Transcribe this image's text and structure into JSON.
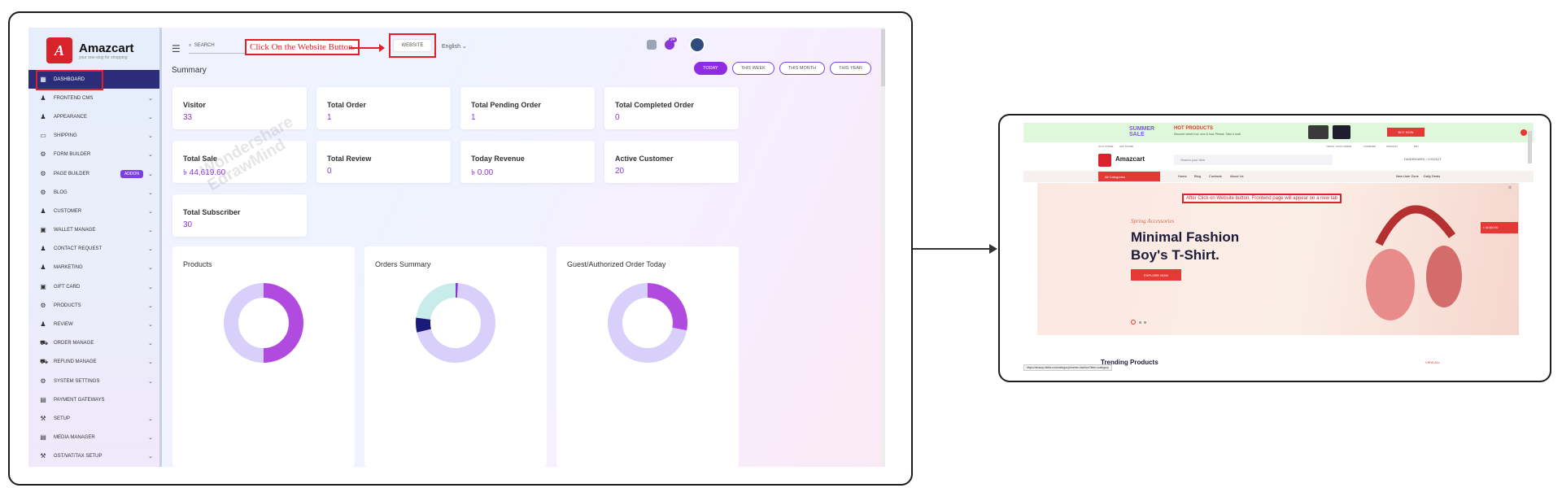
{
  "dashboard": {
    "brand": {
      "name": "Amazcart",
      "tagline": "your one-stop for shopping",
      "mark": "A"
    },
    "sidebar": [
      {
        "label": "Dashboard",
        "icon": "grid-icon",
        "active": true,
        "chevron": false
      },
      {
        "label": "Frontend CMS",
        "icon": "user-icon",
        "chevron": true
      },
      {
        "label": "Appearance",
        "icon": "user-icon",
        "chevron": true
      },
      {
        "label": "Shipping",
        "icon": "card-icon",
        "chevron": true
      },
      {
        "label": "Form Builder",
        "icon": "gears-icon",
        "chevron": true
      },
      {
        "label": "Page Builder",
        "icon": "gears-icon",
        "chevron": true,
        "badge": "ADDON"
      },
      {
        "label": "Blog",
        "icon": "gear-icon",
        "chevron": true
      },
      {
        "label": "Customer",
        "icon": "users-icon",
        "chevron": true
      },
      {
        "label": "Wallet Manage",
        "icon": "wallet-icon",
        "chevron": true
      },
      {
        "label": "Contact Request",
        "icon": "user-icon",
        "chevron": true
      },
      {
        "label": "Marketing",
        "icon": "user-icon",
        "chevron": true
      },
      {
        "label": "Gift Card",
        "icon": "gift-icon",
        "chevron": true
      },
      {
        "label": "Products",
        "icon": "gear-icon",
        "chevron": true
      },
      {
        "label": "Review",
        "icon": "user-icon",
        "chevron": true
      },
      {
        "label": "Order Manage",
        "icon": "cart-icon",
        "chevron": true
      },
      {
        "label": "Refund Manage",
        "icon": "cart-icon",
        "chevron": true
      },
      {
        "label": "System Settings",
        "icon": "gear-icon",
        "chevron": true
      },
      {
        "label": "Payment Gateways",
        "icon": "payment-icon",
        "chevron": false
      },
      {
        "label": "Setup",
        "icon": "tool-icon",
        "chevron": true
      },
      {
        "label": "Media Manager",
        "icon": "media-icon",
        "chevron": true
      },
      {
        "label": "GST/VAT/TAX Setup",
        "icon": "tool-icon",
        "chevron": true
      }
    ],
    "header": {
      "search_placeholder": "SEARCH",
      "website_label": "WEBSITE",
      "language": "English",
      "notification_count": "24"
    },
    "callout": "Click On the Website Button.",
    "summary_title": "Summary",
    "period_pills": [
      {
        "label": "Today",
        "active": true
      },
      {
        "label": "This Week"
      },
      {
        "label": "This Month"
      },
      {
        "label": "This Year"
      }
    ],
    "cards": [
      {
        "label": "Visitor",
        "value": "33"
      },
      {
        "label": "Total Order",
        "value": "1"
      },
      {
        "label": "Total Pending Order",
        "value": "1"
      },
      {
        "label": "Total Completed Order",
        "value": "0"
      },
      {
        "label": "Total Sale",
        "value": "৳ 44,619.60"
      },
      {
        "label": "Total Review",
        "value": "0"
      },
      {
        "label": "Today Revenue",
        "value": "৳ 0.00"
      },
      {
        "label": "Active Customer",
        "value": "20"
      },
      {
        "label": "Total Subscriber",
        "value": "30"
      }
    ],
    "panels": [
      {
        "title": "Products",
        "slices": [
          {
            "fraction": 0.5,
            "color": "#b14be0"
          },
          {
            "fraction": 0.5,
            "color": "#d8d0fa"
          }
        ]
      },
      {
        "title": "Orders Summary",
        "slices": [
          {
            "fraction": 0.01,
            "color": "#8a37d8"
          },
          {
            "fraction": 0.7,
            "color": "#d8d0fa"
          },
          {
            "fraction": 0.06,
            "color": "#1a1a7a"
          },
          {
            "fraction": 0.23,
            "color": "#c8ecea"
          }
        ]
      },
      {
        "title": "Guest/Authorized Order Today",
        "slices": [
          {
            "fraction": 0.28,
            "color": "#b14be0"
          },
          {
            "fraction": 0.72,
            "color": "#d8d0fa"
          }
        ]
      }
    ],
    "watermark": [
      "Wondershare",
      "EdrawMind"
    ]
  },
  "website": {
    "promo": {
      "big": "SUMMER SALE",
      "hot": "HOT PRODUCTS",
      "sub": "Discover what's hot, new & now. Please, Take a look!",
      "cta": "BUY NOW"
    },
    "topbar_left": [
      "PLAY STORE",
      "APP STORE"
    ],
    "topbar_right": [
      "TRACK YOUR ORDER",
      "COMPARE",
      "WISHLIST",
      "BDT"
    ],
    "brand": "Amazcart",
    "search_placeholder": "Search your item",
    "account": "DASHBOARD / LOGOUT",
    "all_categories": "All Categories",
    "nav": [
      "Home",
      "Blog",
      "Contacts",
      "About Us"
    ],
    "nav_right": [
      "New User Zone",
      "Daily Deals"
    ],
    "note": "After Click on Website button, Frontend page will appear on a new tab",
    "hero": {
      "kicker": "Spring Accessories",
      "line1": "Minimal Fashion",
      "line2": "Boy's T-Shirt.",
      "cta": "EXPLORE NOW"
    },
    "cart_value": "৳ 44,600.00",
    "trending": "Trending Products",
    "view_all": "VIEW ALL",
    "status_url": "https://amazy.rishfa.com/category/women-fashion?item=category"
  },
  "colors": {
    "accent": "#8e2ce4",
    "highlight": "#e21e26",
    "brand_red": "#e53935"
  }
}
